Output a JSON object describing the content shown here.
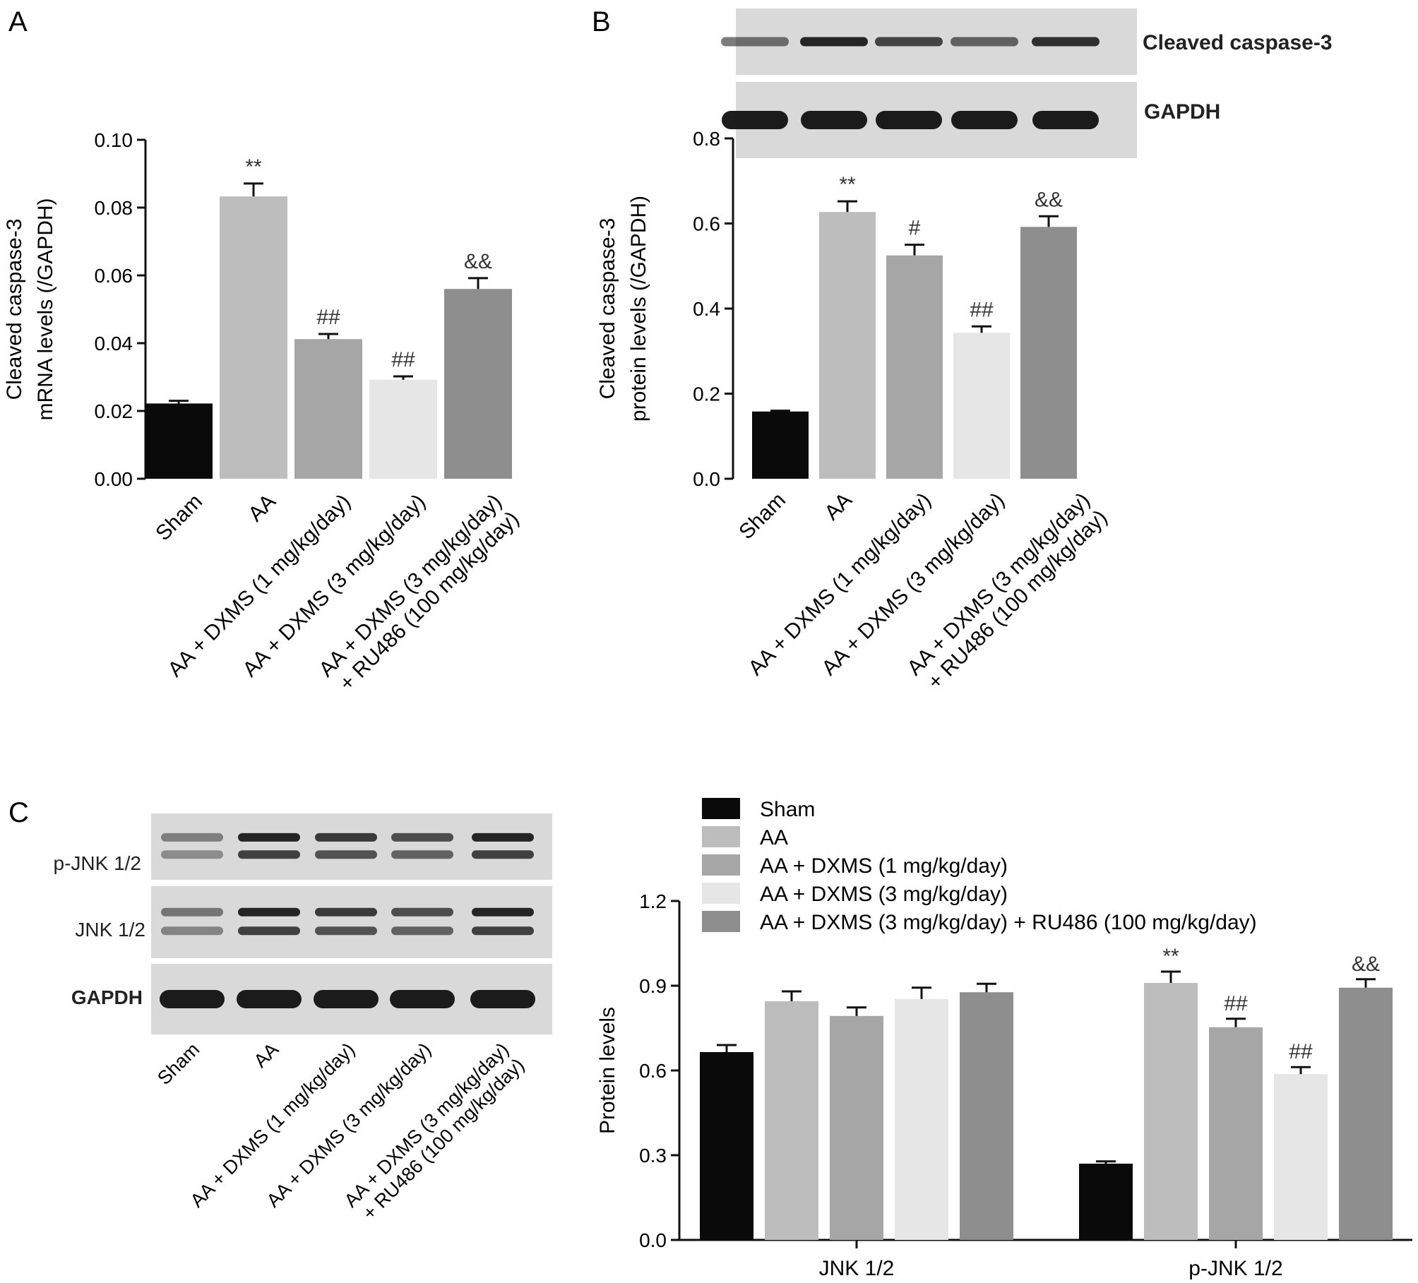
{
  "colors": {
    "sham": "#0a0a0a",
    "aa": "#bdbdbd",
    "dxms1": "#a6a6a6",
    "dxms3": "#e6e6e6",
    "ru486": "#8e8e8e",
    "blot_bg": "#d9d9d9",
    "band": "#111111"
  },
  "panels": {
    "A": {
      "letter": "A"
    },
    "B": {
      "letter": "B",
      "blot_labels": [
        "Cleaved caspase-3",
        "GAPDH"
      ]
    },
    "C": {
      "letter": "C",
      "blot_labels": [
        "p-JNK 1/2",
        "JNK 1/2",
        "GAPDH"
      ]
    }
  },
  "groups_two_line": [
    [
      "Sham"
    ],
    [
      "AA"
    ],
    [
      "AA + DXMS (1 mg/kg/day)"
    ],
    [
      "AA + DXMS (3 mg/kg/day)"
    ],
    [
      "AA + DXMS (3 mg/kg/day)",
      "+ RU486 (100 mg/kg/day)"
    ]
  ],
  "chart_data": [
    {
      "panel": "A",
      "type": "bar",
      "categories": [
        "Sham",
        "AA",
        "AA + DXMS (1 mg/kg/day)",
        "AA + DXMS (3 mg/kg/day)",
        "AA + DXMS (3 mg/kg/day) + RU486 (100 mg/kg/day)"
      ],
      "values": [
        0.0222,
        0.0833,
        0.0412,
        0.0292,
        0.056
      ],
      "errors": [
        0.0008,
        0.0038,
        0.0015,
        0.001,
        0.0032
      ],
      "annotations": [
        "",
        "**",
        "##",
        "##",
        "&&"
      ],
      "ylabel_lines": [
        "Cleaved caspase-3",
        "mRNA levels (/GAPDH)"
      ],
      "ylim": [
        0,
        0.1
      ],
      "yticks": [
        "0.00",
        "0.02",
        "0.04",
        "0.06",
        "0.08",
        "0.10"
      ],
      "grid": false
    },
    {
      "panel": "B",
      "type": "bar",
      "categories": [
        "Sham",
        "AA",
        "AA + DXMS (1 mg/kg/day)",
        "AA + DXMS (3 mg/kg/day)",
        "AA + DXMS (3 mg/kg/day) + RU486 (100 mg/kg/day)"
      ],
      "values": [
        0.158,
        0.627,
        0.525,
        0.343,
        0.592
      ],
      "errors": [
        0.002,
        0.025,
        0.025,
        0.015,
        0.025
      ],
      "annotations": [
        "",
        "**",
        "#",
        "##",
        "&&"
      ],
      "ylabel_lines": [
        "Cleaved caspase-3",
        "protein levels (/GAPDH)"
      ],
      "ylim": [
        0,
        0.8
      ],
      "yticks": [
        "0.0",
        "0.2",
        "0.4",
        "0.6",
        "0.8"
      ],
      "grid": false
    },
    {
      "panel": "C",
      "type": "bar",
      "categories": [
        "JNK 1/2",
        "p-JNK 1/2"
      ],
      "series": [
        {
          "name": "Sham",
          "values": [
            0.665,
            0.27
          ],
          "errors": [
            0.025,
            0.008
          ],
          "annotations": [
            "",
            ""
          ]
        },
        {
          "name": "AA",
          "values": [
            0.845,
            0.91
          ],
          "errors": [
            0.035,
            0.04
          ],
          "annotations": [
            "",
            "**"
          ]
        },
        {
          "name": "AA + DXMS (1 mg/kg/day)",
          "values": [
            0.793,
            0.753
          ],
          "errors": [
            0.03,
            0.03
          ],
          "annotations": [
            "",
            "##"
          ]
        },
        {
          "name": "AA + DXMS (3 mg/kg/day)",
          "values": [
            0.853,
            0.587
          ],
          "errors": [
            0.04,
            0.025
          ],
          "annotations": [
            "",
            "##"
          ]
        },
        {
          "name": "AA + DXMS (3 mg/kg/day) + RU486 (100 mg/kg/day)",
          "values": [
            0.877,
            0.893
          ],
          "errors": [
            0.03,
            0.03
          ],
          "annotations": [
            "",
            "&&"
          ]
        }
      ],
      "ylabel": "Protein levels",
      "ylim": [
        0,
        1.2
      ],
      "yticks": [
        "0.0",
        "0.3",
        "0.6",
        "0.9",
        "1.2"
      ],
      "legend_position": "top",
      "grid": false
    }
  ]
}
